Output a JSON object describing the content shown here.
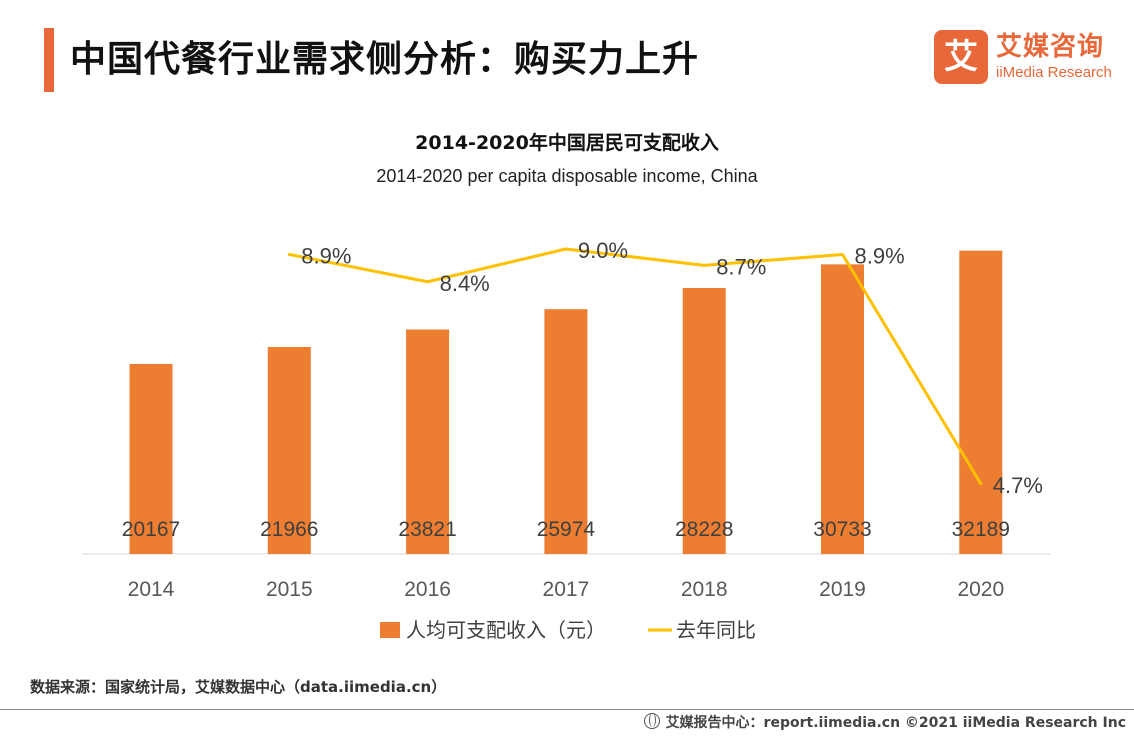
{
  "header": {
    "title": "中国代餐行业需求侧分析：购买力上升"
  },
  "logo": {
    "mark": "艾",
    "name_cn": "艾媒咨询",
    "name_en": "iiMedia Research"
  },
  "chart_data": {
    "type": "bar+line",
    "title": "2014-2020年中国居民可支配收入",
    "subtitle": "2014-2020 per capita disposable income, China",
    "categories": [
      "2014",
      "2015",
      "2016",
      "2017",
      "2018",
      "2019",
      "2020"
    ],
    "series": [
      {
        "name": "人均可支配收入（元）",
        "type": "bar",
        "color": "#ed7d31",
        "values": [
          20167,
          21966,
          23821,
          25974,
          28228,
          30733,
          32189
        ],
        "labels": [
          "20167",
          "21966",
          "23821",
          "25974",
          "28228",
          "30733",
          "32189"
        ]
      },
      {
        "name": "去年同比",
        "type": "line",
        "color": "#ffc000",
        "values": [
          null,
          8.9,
          8.4,
          9.0,
          8.7,
          8.9,
          4.7
        ],
        "labels": [
          "",
          "8.9%",
          "8.4%",
          "9.0%",
          "8.7%",
          "8.9%",
          "4.7%"
        ]
      }
    ],
    "ylim": [
      0,
      33000
    ],
    "y2lim": [
      0,
      10
    ],
    "legend_position": "bottom"
  },
  "source": "数据来源：国家统计局，艾媒数据中心（data.iimedia.cn）",
  "footer": "艾媒报告中心：report.iimedia.cn   ©2021  iiMedia Research  Inc"
}
